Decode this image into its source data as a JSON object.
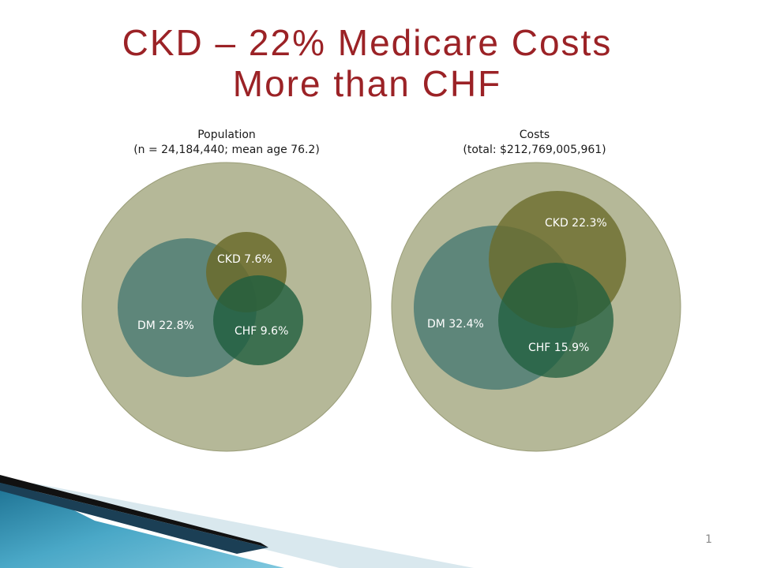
{
  "title": {
    "line1": "CKD – 22% Medicare Costs",
    "line2": "More than CHF"
  },
  "panels": [
    {
      "heading": "Population",
      "subheading": "(n = 24,184,440; mean age 76.2)",
      "labels": {
        "ckd": "CKD 7.6%",
        "dm": "DM 22.8%",
        "chf": "CHF 9.6%"
      }
    },
    {
      "heading": "Costs",
      "subheading": "(total: $212,769,005,961)",
      "labels": {
        "ckd": "CKD 22.3%",
        "dm": "DM 32.4%",
        "chf": "CHF 15.9%"
      }
    }
  ],
  "page_number": "1",
  "colors": {
    "title": "#9b2226",
    "outer": "#b5b898",
    "dm": "#4f7c74",
    "ckd": "#6b6b2c",
    "chf": "#1f5e3e"
  }
}
